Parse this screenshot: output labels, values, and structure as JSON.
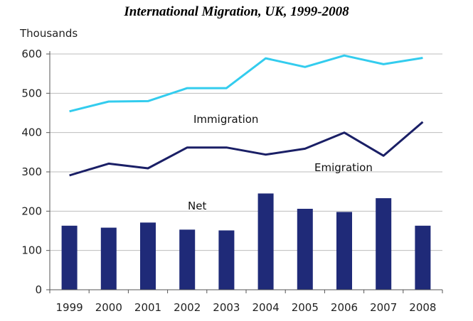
{
  "chart_data": {
    "type": "bar",
    "title": "International Migration, UK, 1999-2008",
    "ylabel": "Thousands",
    "xlabel": "",
    "ylim": [
      0,
      600
    ],
    "yticks": [
      0,
      100,
      200,
      300,
      400,
      500,
      600
    ],
    "grid": true,
    "legend": "none",
    "categories": [
      "1999",
      "2000",
      "2001",
      "2002",
      "2003",
      "2004",
      "2005",
      "2006",
      "2007",
      "2008"
    ],
    "series": [
      {
        "name": "Immigration",
        "kind": "line",
        "color": "#33ccee",
        "values": [
          454,
          479,
          480,
          513,
          513,
          589,
          567,
          596,
          574,
          590
        ]
      },
      {
        "name": "Emigration",
        "kind": "line",
        "color": "#1a1f66",
        "values": [
          291,
          321,
          309,
          362,
          362,
          344,
          359,
          400,
          341,
          427
        ]
      },
      {
        "name": "Net",
        "kind": "bar",
        "color": "#1f2a78",
        "values": [
          163,
          158,
          171,
          153,
          151,
          245,
          206,
          198,
          233,
          163
        ]
      }
    ]
  }
}
